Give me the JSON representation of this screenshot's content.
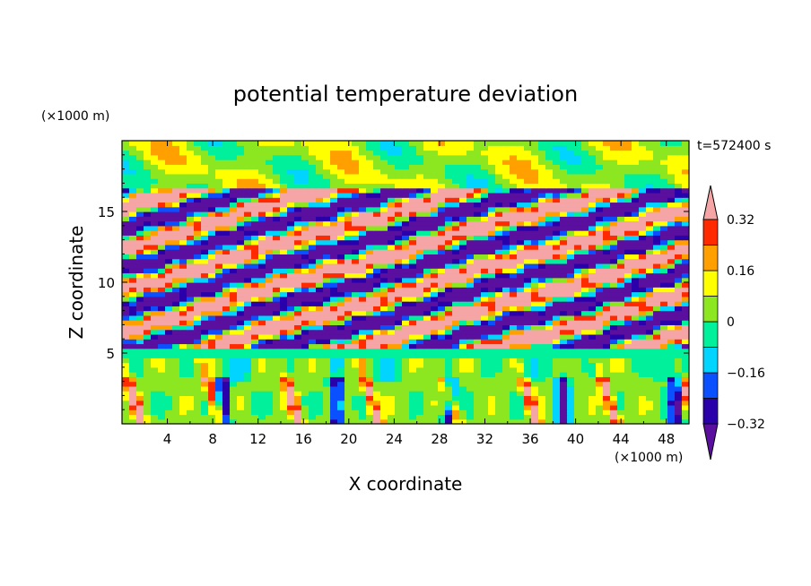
{
  "chart_data": {
    "type": "heatmap",
    "title": "potential temperature deviation",
    "xlabel": "X coordinate",
    "ylabel": "Z coordinate",
    "x_unit_label": "(×1000 m)",
    "y_unit_label": "(×1000 m)",
    "time_label": "t=572400 s",
    "xlim": [
      0,
      50
    ],
    "ylim": [
      0,
      20
    ],
    "x_ticks": [
      4,
      8,
      12,
      16,
      20,
      24,
      28,
      32,
      36,
      40,
      44,
      48
    ],
    "x_tick_labels": [
      "4",
      "8",
      "12",
      "16",
      "20",
      "24",
      "28",
      "32",
      "36",
      "40",
      "44",
      "48"
    ],
    "y_ticks": [
      5,
      10,
      15
    ],
    "y_tick_labels": [
      "5",
      "10",
      "15"
    ],
    "colorbar": {
      "levels": [
        -0.4,
        -0.32,
        -0.24,
        -0.16,
        -0.08,
        0,
        0.08,
        0.16,
        0.24,
        0.32,
        0.4
      ],
      "tick_values": [
        0.32,
        0.16,
        0,
        -0.16,
        -0.32
      ],
      "tick_labels": [
        "0.32",
        "0.16",
        "0",
        "−0.16",
        "−0.32"
      ],
      "colors_low_to_high": [
        "#5a0f9e",
        "#2a00aa",
        "#0a50ff",
        "#00d4ff",
        "#00f09c",
        "#8ce620",
        "#ffff00",
        "#ffa000",
        "#ff2a00",
        "#f5a5a5"
      ],
      "extend": "both"
    },
    "features": [
      {
        "name": "stratified bands",
        "z_range": [
          5,
          17
        ],
        "description_values": "alternating warm (+0.4) and cold (-0.4) tilted layers"
      },
      {
        "name": "weak convective layer",
        "z_range": [
          0,
          5
        ],
        "description_values": "mostly near-zero values with scattered +/-0.3 plumes"
      },
      {
        "name": "upper layer",
        "z_range": [
          17,
          20
        ],
        "description_values": "near-zero values"
      }
    ]
  }
}
